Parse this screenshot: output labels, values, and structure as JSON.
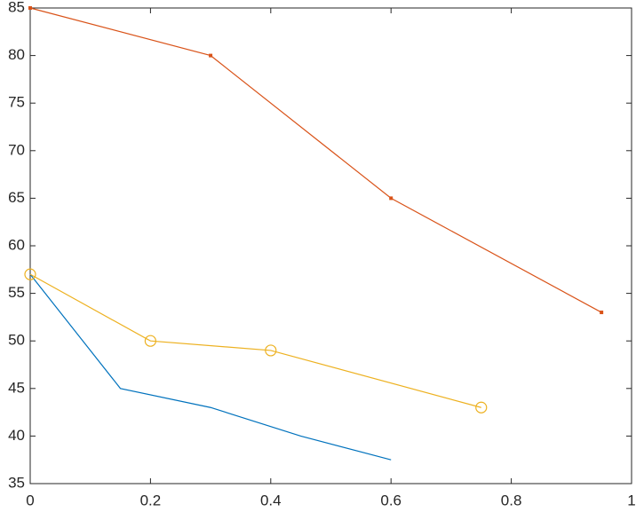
{
  "chart_data": {
    "type": "line",
    "xlim": [
      0,
      1
    ],
    "xticks": [
      0,
      0.2,
      0.4,
      0.6,
      0.8,
      1
    ],
    "ylim": [
      35,
      85
    ],
    "yticks": [
      35,
      40,
      45,
      50,
      55,
      60,
      65,
      70,
      75,
      80,
      85
    ],
    "grid": false,
    "series": [
      {
        "color": "#0072BD",
        "marker": "none",
        "x": [
          0,
          0.15,
          0.3,
          0.45,
          0.6
        ],
        "values": [
          57,
          45,
          43,
          40,
          37.5
        ]
      },
      {
        "color": "#D95319",
        "marker": "square",
        "x": [
          0,
          0.3,
          0.6,
          0.95
        ],
        "values": [
          85,
          80,
          65,
          53
        ]
      },
      {
        "color": "#EDB120",
        "marker": "circle",
        "x": [
          0,
          0.2,
          0.4,
          0.75
        ],
        "values": [
          57,
          50,
          49,
          43
        ]
      }
    ]
  }
}
